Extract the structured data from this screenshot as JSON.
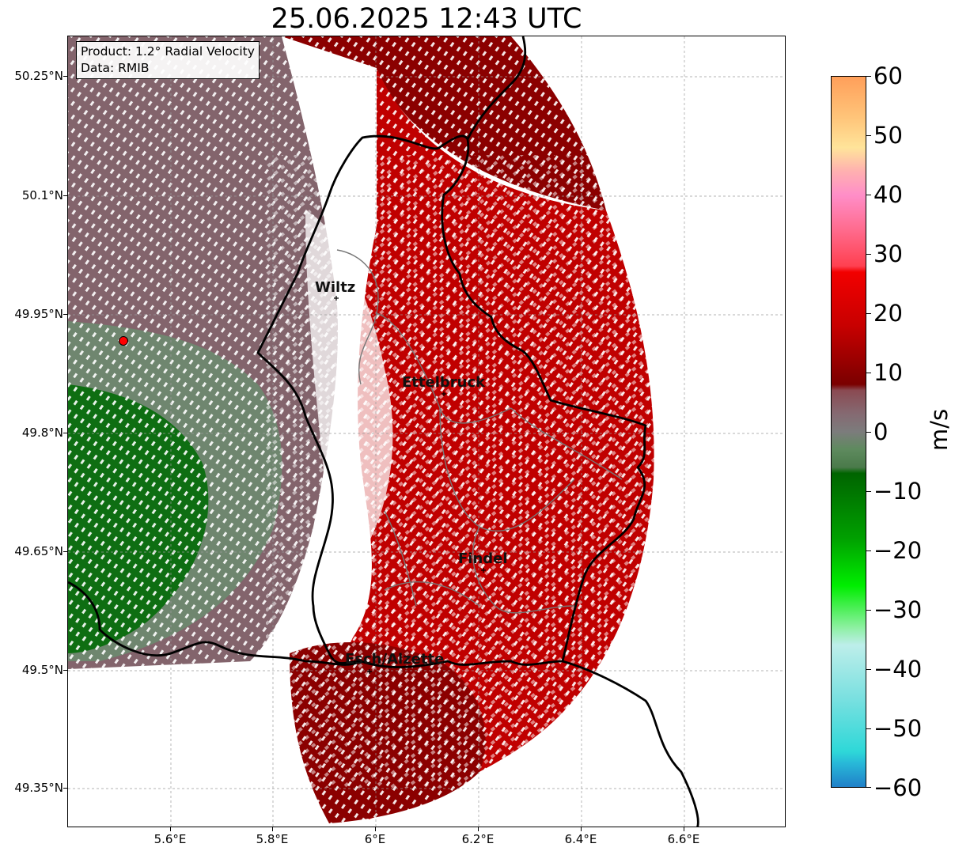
{
  "title": "25.06.2025 12:43 UTC",
  "info": {
    "product": "Product: 1.2° Radial Velocity",
    "data": "Data: RMIB"
  },
  "axes": {
    "lat_labels": [
      "50.25°N",
      "50.1°N",
      "49.95°N",
      "49.8°N",
      "49.65°N",
      "49.5°N",
      "49.35°N"
    ],
    "lon_labels": [
      "5.6°E",
      "5.8°E",
      "6°E",
      "6.2°E",
      "6.4°E",
      "6.6°E"
    ]
  },
  "colorbar": {
    "unit": "m/s",
    "tick_labels": [
      "60",
      "50",
      "40",
      "30",
      "20",
      "10",
      "0",
      "−10",
      "−20",
      "−30",
      "−40",
      "−50",
      "−60"
    ],
    "range": [
      -60,
      60
    ],
    "stops": [
      {
        "v": 60,
        "c": "#ff9f5a"
      },
      {
        "v": 53,
        "c": "#ffc57a"
      },
      {
        "v": 48,
        "c": "#ffe49a"
      },
      {
        "v": 44,
        "c": "#ffb0b0"
      },
      {
        "v": 40,
        "c": "#ff8ec8"
      },
      {
        "v": 34,
        "c": "#ff6a8c"
      },
      {
        "v": 28,
        "c": "#ff4050"
      },
      {
        "v": 27,
        "c": "#f20000"
      },
      {
        "v": 18,
        "c": "#c80000"
      },
      {
        "v": 8,
        "c": "#7a0000"
      },
      {
        "v": 7,
        "c": "#8a4a52"
      },
      {
        "v": 3,
        "c": "#856a72"
      },
      {
        "v": 0,
        "c": "#7c7c7c"
      },
      {
        "v": -3,
        "c": "#5e8a5e"
      },
      {
        "v": -6,
        "c": "#4a7a4a"
      },
      {
        "v": -7,
        "c": "#006400"
      },
      {
        "v": -18,
        "c": "#00a000"
      },
      {
        "v": -26,
        "c": "#00ee00"
      },
      {
        "v": -33,
        "c": "#8cf0a0"
      },
      {
        "v": -36,
        "c": "#bdeeea"
      },
      {
        "v": -45,
        "c": "#7ae0e0"
      },
      {
        "v": -54,
        "c": "#2ed8d8"
      },
      {
        "v": -56,
        "c": "#28b8d8"
      },
      {
        "v": -60,
        "c": "#2080c8"
      }
    ]
  },
  "cities": [
    {
      "name": "Wiltz"
    },
    {
      "name": "Ettelbruck"
    },
    {
      "name": "Findel"
    },
    {
      "name": "Esch/Alzette"
    }
  ],
  "radar_marker": {
    "color": "#ff0000"
  },
  "colors": {
    "dark_red": "#8b0000",
    "red": "#c00000",
    "mauve": "#83646c",
    "grey_green": "#6f866f",
    "green": "#006400"
  }
}
